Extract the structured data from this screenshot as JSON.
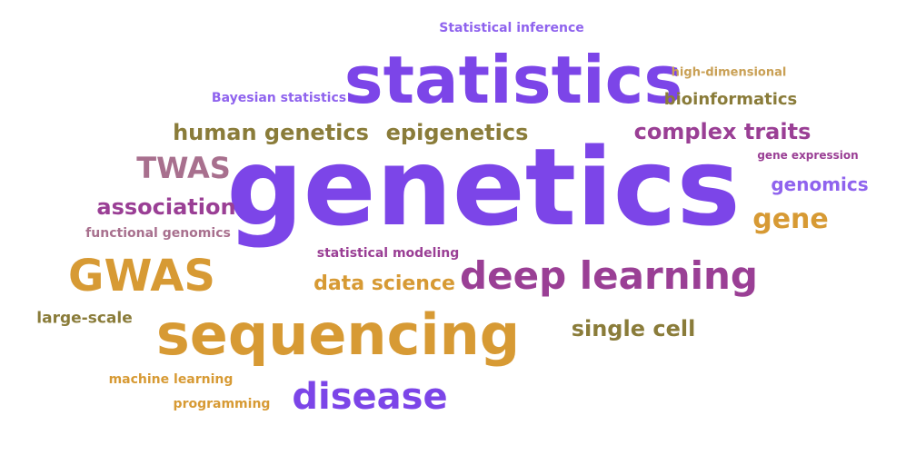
{
  "palette": {
    "purple": "#7c45e8",
    "violet": "#8f63ee",
    "plum": "#9a3f95",
    "mauve": "#a8708e",
    "orange": "#d79a34",
    "olive": "#8a7c3a",
    "gold": "#c9a055"
  },
  "words": [
    {
      "text": "genetics",
      "color": "#7c45e8",
      "weight": 100
    },
    {
      "text": "statistics",
      "color": "#7c45e8",
      "weight": 70
    },
    {
      "text": "sequencing",
      "color": "#d79a34",
      "weight": 66
    },
    {
      "text": "deep learning",
      "color": "#9a3f95",
      "weight": 45
    },
    {
      "text": "GWAS",
      "color": "#d79a34",
      "weight": 45
    },
    {
      "text": "disease",
      "color": "#7c45e8",
      "weight": 42
    },
    {
      "text": "TWAS",
      "color": "#a8708e",
      "weight": 30
    },
    {
      "text": "gene",
      "color": "#d79a34",
      "weight": 30
    },
    {
      "text": "human genetics",
      "color": "#8a7c3a",
      "weight": 28
    },
    {
      "text": "epigenetics",
      "color": "#8a7c3a",
      "weight": 28
    },
    {
      "text": "complex traits",
      "color": "#9a3f95",
      "weight": 28
    },
    {
      "text": "association",
      "color": "#9a3f95",
      "weight": 28
    },
    {
      "text": "single cell",
      "color": "#8a7c3a",
      "weight": 28
    },
    {
      "text": "data science",
      "color": "#d79a34",
      "weight": 26
    },
    {
      "text": "genomics",
      "color": "#8f63ee",
      "weight": 24
    },
    {
      "text": "bioinformatics",
      "color": "#8a7c3a",
      "weight": 22
    },
    {
      "text": "large-scale",
      "color": "#8a7c3a",
      "weight": 20
    },
    {
      "text": "functional genomics",
      "color": "#a8708e",
      "weight": 16
    },
    {
      "text": "statistical modeling",
      "color": "#9a3f95",
      "weight": 16
    },
    {
      "text": "Bayesian statistics",
      "color": "#8f63ee",
      "weight": 16
    },
    {
      "text": "machine learning",
      "color": "#d79a34",
      "weight": 16
    },
    {
      "text": "programming",
      "color": "#d79a34",
      "weight": 16
    },
    {
      "text": "Statistical inference",
      "color": "#8f63ee",
      "weight": 16
    },
    {
      "text": "high-dimensional",
      "color": "#c9a055",
      "weight": 14
    },
    {
      "text": "gene expression",
      "color": "#9a3f95",
      "weight": 13
    }
  ]
}
